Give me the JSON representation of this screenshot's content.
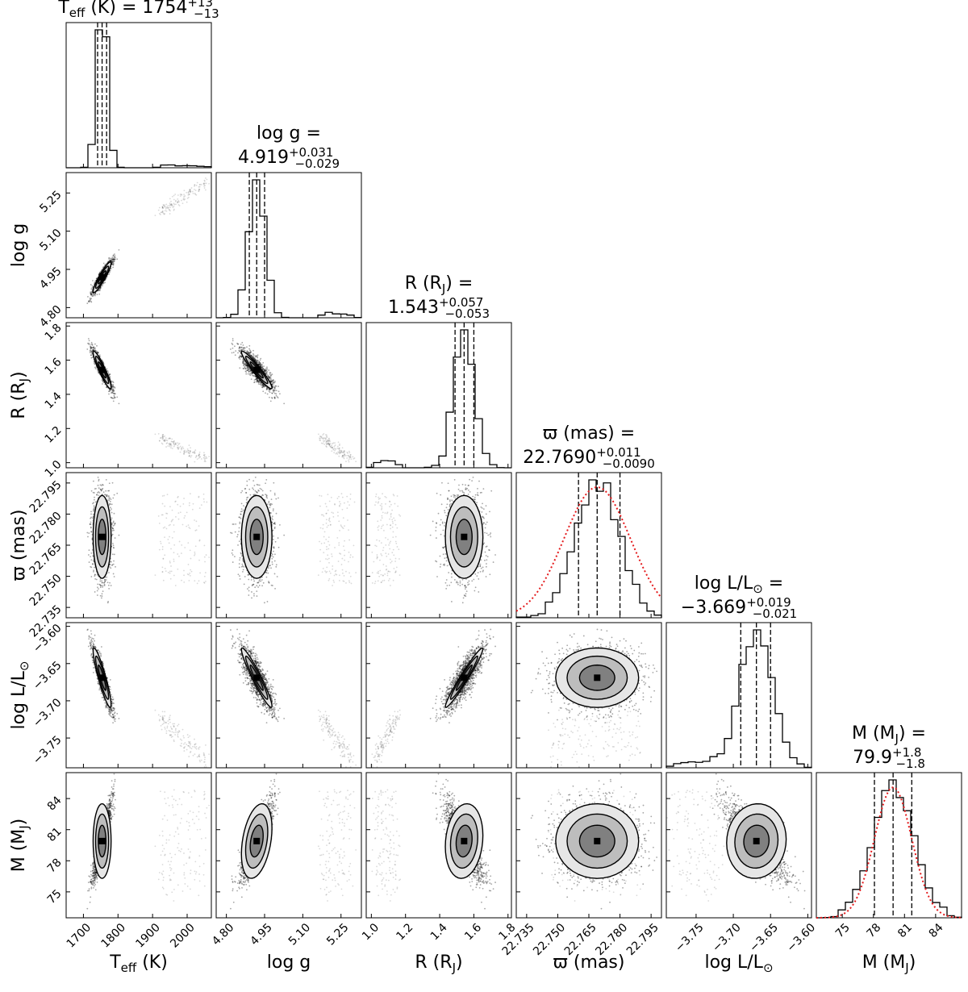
{
  "chart_data": {
    "type": "corner",
    "parameters": [
      {
        "key": "teff",
        "axis_label": [
          "T",
          "eff",
          " (K)"
        ],
        "title": "T_eff (K) = 1754 +13 -13",
        "title_lines": [
          [
            "T",
            "eff",
            " (K) = 1754"
          ]
        ],
        "median": "1754",
        "err_plus": "+13",
        "err_minus": "−13",
        "range": [
          1650,
          2070
        ],
        "ticks": [
          "1700",
          "1800",
          "1900",
          "2000"
        ],
        "tick_values": [
          1700,
          1800,
          1900,
          2000
        ],
        "quantiles": [
          1741,
          1754,
          1767
        ]
      },
      {
        "key": "logg",
        "axis_label": [
          "log g"
        ],
        "title": "log g = 4.919 +0.031 -0.029",
        "median": "4.919",
        "err_plus": "+0.031",
        "err_minus": "−0.029",
        "range": [
          4.76,
          5.33
        ],
        "ticks": [
          "4.80",
          "4.95",
          "5.10",
          "5.25"
        ],
        "tick_values": [
          4.8,
          4.95,
          5.1,
          5.25
        ],
        "quantiles": [
          4.89,
          4.919,
          4.95
        ]
      },
      {
        "key": "radius",
        "axis_label": [
          "R (R",
          "J",
          ")"
        ],
        "title": "R (R_J) = 1.543 +0.057 -0.053",
        "median": "1.543",
        "err_plus": "+0.057",
        "err_minus": "−0.053",
        "range": [
          0.97,
          1.82
        ],
        "ticks": [
          "1.0",
          "1.2",
          "1.4",
          "1.6",
          "1.8"
        ],
        "tick_values": [
          1.0,
          1.2,
          1.4,
          1.6,
          1.8
        ],
        "quantiles": [
          1.49,
          1.543,
          1.6
        ]
      },
      {
        "key": "parallax",
        "axis_label": [
          "ϖ (mas)"
        ],
        "title": "ϖ (mas) = 22.7690 +0.011 -0.0090",
        "median": "22.7690",
        "err_plus": "+0.011",
        "err_minus": "−0.0090",
        "range": [
          22.73,
          22.8
        ],
        "ticks": [
          "22.735",
          "22.750",
          "22.765",
          "22.780",
          "22.795"
        ],
        "tick_values": [
          22.735,
          22.75,
          22.765,
          22.78,
          22.795
        ],
        "quantiles": [
          22.76,
          22.769,
          22.78
        ]
      },
      {
        "key": "logl",
        "axis_label": [
          "log L/L",
          "⊙"
        ],
        "title": "log L/L_sun = −3.669 +0.019 -0.021",
        "median": "−3.669",
        "err_plus": "+0.019",
        "err_minus": "−0.021",
        "range": [
          -3.79,
          -3.595
        ],
        "ticks": [
          "−3.75",
          "−3.70",
          "−3.65",
          "−3.60"
        ],
        "tick_values": [
          -3.75,
          -3.7,
          -3.65,
          -3.6
        ],
        "quantiles": [
          -3.69,
          -3.669,
          -3.65
        ]
      },
      {
        "key": "mass",
        "axis_label": [
          "M (M",
          "J",
          ")"
        ],
        "title": "M (M_J) = 79.9 +1.8 -1.8",
        "median": "79.9",
        "err_plus": "+1.8",
        "err_minus": "−1.8",
        "range": [
          72.5,
          86.5
        ],
        "ticks": [
          "75",
          "78",
          "81",
          "84"
        ],
        "tick_values": [
          75,
          78,
          81,
          84
        ],
        "quantiles": [
          78.1,
          79.9,
          81.7
        ]
      }
    ],
    "titles": {
      "teff": {
        "prefix": "T",
        "sub": "eff",
        "suffix": " (K) = 1754"
      },
      "logg": {
        "line1": "log g =",
        "value": "4.919"
      },
      "radius": {
        "line1_prefix": "R (R",
        "line1_sub": "J",
        "line1_suffix": ") =",
        "value": "1.543"
      },
      "parallax": {
        "line1": "ϖ (mas) =",
        "value": "22.7690"
      },
      "logl": {
        "line1_prefix": "log L/L",
        "line1_sub": "⊙",
        "line1_suffix": " =",
        "value": "−3.669"
      },
      "mass": {
        "line1_prefix": "M (M",
        "line1_sub": "J",
        "line1_suffix": ") =",
        "value": "79.9"
      }
    },
    "correlations": [
      [
        0,
        0,
        0,
        0,
        0,
        0
      ],
      [
        0.92,
        0,
        0,
        0,
        0,
        0
      ],
      [
        -0.92,
        -0.95,
        0,
        0,
        0,
        0
      ],
      [
        0.0,
        0.05,
        0.05,
        0,
        0,
        0
      ],
      [
        -0.9,
        -0.95,
        0.97,
        0.0,
        0,
        0
      ],
      [
        0.0,
        0.35,
        0.15,
        0.0,
        0.05,
        0
      ]
    ],
    "secondary_mode": {
      "description_values": {
        "teff": 1990,
        "logg": 5.22,
        "radius": 1.08,
        "logl": -3.75
      }
    },
    "gaussian_prior": {
      "parameters": [
        "parallax",
        "mass"
      ],
      "color": "#e41a1c",
      "style": "dotted"
    }
  }
}
